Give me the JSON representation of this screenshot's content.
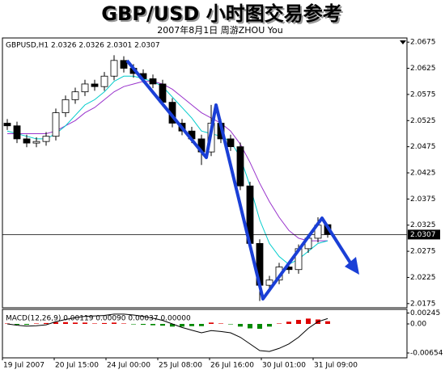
{
  "chart_data": {
    "type": "candlestick",
    "title": "GBP/USD 小时图交易参考",
    "subtitle": "2007年8月1日      周游ZHOU You",
    "info_label": "GBPUSD,H1  2.0326 2.0326 2.0301 2.0307",
    "xlim": [
      0,
      250
    ],
    "xticks": [
      {
        "value": 0,
        "label": "19 Jul 2007"
      },
      {
        "value": 32,
        "label": "20 Jul 15:00"
      },
      {
        "value": 64,
        "label": "24 Jul 00:00"
      },
      {
        "value": 96,
        "label": "25 Jul 08:00"
      },
      {
        "value": 128,
        "label": "26 Jul 16:00"
      },
      {
        "value": 160,
        "label": "30 Jul 01:00"
      },
      {
        "value": 192,
        "label": "31 Jul 09:00"
      }
    ],
    "ylim": [
      2.0167,
      2.0683
    ],
    "yticks": [
      2.0675,
      2.0625,
      2.0575,
      2.0525,
      2.0475,
      2.0425,
      2.0375,
      2.0325,
      2.0275,
      2.0225,
      2.0175
    ],
    "last_price": 2.0307,
    "up_color": "#ffffff",
    "down_color": "#000000",
    "candles": {
      "x": [
        3,
        9,
        15,
        21,
        27,
        33,
        39,
        45,
        51,
        57,
        63,
        69,
        75,
        81,
        87,
        93,
        99,
        105,
        111,
        117,
        123,
        129,
        135,
        141,
        147,
        153,
        159,
        165,
        171,
        177,
        183,
        189,
        195,
        201
      ],
      "open": [
        2.052,
        2.0515,
        2.049,
        2.0482,
        2.0485,
        2.0495,
        2.054,
        2.0565,
        2.058,
        2.0595,
        2.059,
        2.061,
        2.064,
        2.0625,
        2.0615,
        2.0605,
        2.0595,
        2.056,
        2.052,
        2.0505,
        2.049,
        2.0465,
        2.052,
        2.049,
        2.0475,
        2.04,
        2.029,
        2.021,
        2.022,
        2.0245,
        2.024,
        2.028,
        2.03,
        2.0326
      ],
      "high": [
        2.0528,
        2.0523,
        2.0498,
        2.0493,
        2.0503,
        2.0548,
        2.0573,
        2.0588,
        2.0603,
        2.0603,
        2.0618,
        2.065,
        2.0648,
        2.0633,
        2.0623,
        2.0613,
        2.0603,
        2.0568,
        2.0528,
        2.0513,
        2.0498,
        2.0555,
        2.0528,
        2.0498,
        2.0483,
        2.0408,
        2.0298,
        2.0228,
        2.0253,
        2.0253,
        2.0288,
        2.0308,
        2.034,
        2.0326
      ],
      "low": [
        2.0507,
        2.0482,
        2.0474,
        2.0474,
        2.0477,
        2.0487,
        2.0532,
        2.0557,
        2.0572,
        2.0582,
        2.0582,
        2.0602,
        2.0617,
        2.0607,
        2.0597,
        2.0587,
        2.0552,
        2.0512,
        2.0497,
        2.0482,
        2.044,
        2.0457,
        2.0482,
        2.0467,
        2.0392,
        2.0282,
        2.018,
        2.0202,
        2.0212,
        2.0232,
        2.0232,
        2.0272,
        2.0292,
        2.0301
      ],
      "close": [
        2.0515,
        2.049,
        2.0482,
        2.0485,
        2.0495,
        2.054,
        2.0565,
        2.058,
        2.0595,
        2.059,
        2.061,
        2.064,
        2.0625,
        2.0615,
        2.0605,
        2.0595,
        2.056,
        2.052,
        2.0505,
        2.049,
        2.0465,
        2.052,
        2.049,
        2.0475,
        2.04,
        2.029,
        2.021,
        2.022,
        2.0245,
        2.024,
        2.028,
        2.03,
        2.0325,
        2.0307
      ]
    },
    "overlays": [
      {
        "color": "#9933cc",
        "values": [
          2.05,
          2.05,
          2.05,
          2.05,
          2.05,
          2.0505,
          2.0515,
          2.0525,
          2.054,
          2.055,
          2.0565,
          2.058,
          2.059,
          2.0595,
          2.06,
          2.06,
          2.0595,
          2.0585,
          2.057,
          2.0555,
          2.054,
          2.053,
          2.052,
          2.0505,
          2.048,
          2.0445,
          2.0405,
          2.037,
          2.034,
          2.0315,
          2.03,
          2.0295,
          2.0295,
          2.0295
        ]
      },
      {
        "color": "#00cccc",
        "values": [
          2.0505,
          2.05,
          2.0495,
          2.049,
          2.049,
          2.05,
          2.0515,
          2.0535,
          2.0555,
          2.0565,
          2.058,
          2.06,
          2.061,
          2.061,
          2.0605,
          2.06,
          2.059,
          2.057,
          2.055,
          2.053,
          2.0505,
          2.05,
          2.0495,
          2.0485,
          2.0455,
          2.04,
          2.0335,
          2.029,
          2.0265,
          2.025,
          2.026,
          2.0275,
          2.029,
          2.0295
        ]
      }
    ],
    "macd": {
      "label": "MACD(12,26,9) 0.00119 0.00090 0.00037 0.00000",
      "ylim": [
        -0.00763,
        0.00327
      ],
      "yticks": [
        0.00245,
        {
          "value": 0,
          "label": "0.00"
        },
        -0.00654
      ],
      "pos_color": "#dd0000",
      "neg_color": "#008800",
      "line_color": "#000000",
      "histogram": [
        0.0001,
        -0.0002,
        -0.0002,
        0.0001,
        0.0002,
        0.0004,
        0.0004,
        0.0003,
        0.0003,
        0.0001,
        0.0002,
        0.0003,
        0.0001,
        -0.0001,
        -0.0002,
        -0.0003,
        -0.0004,
        -0.0006,
        -0.0006,
        -0.0005,
        -0.0005,
        0.0003,
        0.0001,
        -0.0001,
        -0.0006,
        -0.001,
        -0.0011,
        -0.0006,
        0.0001,
        0.0005,
        0.0009,
        0.0012,
        0.001,
        0.0006
      ],
      "line": [
        0.0,
        -0.0003,
        -0.0005,
        -0.0004,
        -0.0002,
        0.0005,
        0.001,
        0.0014,
        0.0017,
        0.0018,
        0.0019,
        0.0022,
        0.0022,
        0.002,
        0.0017,
        0.0013,
        0.0008,
        0.0,
        -0.0008,
        -0.0014,
        -0.002,
        -0.0015,
        -0.0017,
        -0.002,
        -0.003,
        -0.0045,
        -0.006,
        -0.0062,
        -0.0055,
        -0.0045,
        -0.003,
        -0.001,
        0.0005,
        0.0012
      ]
    }
  }
}
